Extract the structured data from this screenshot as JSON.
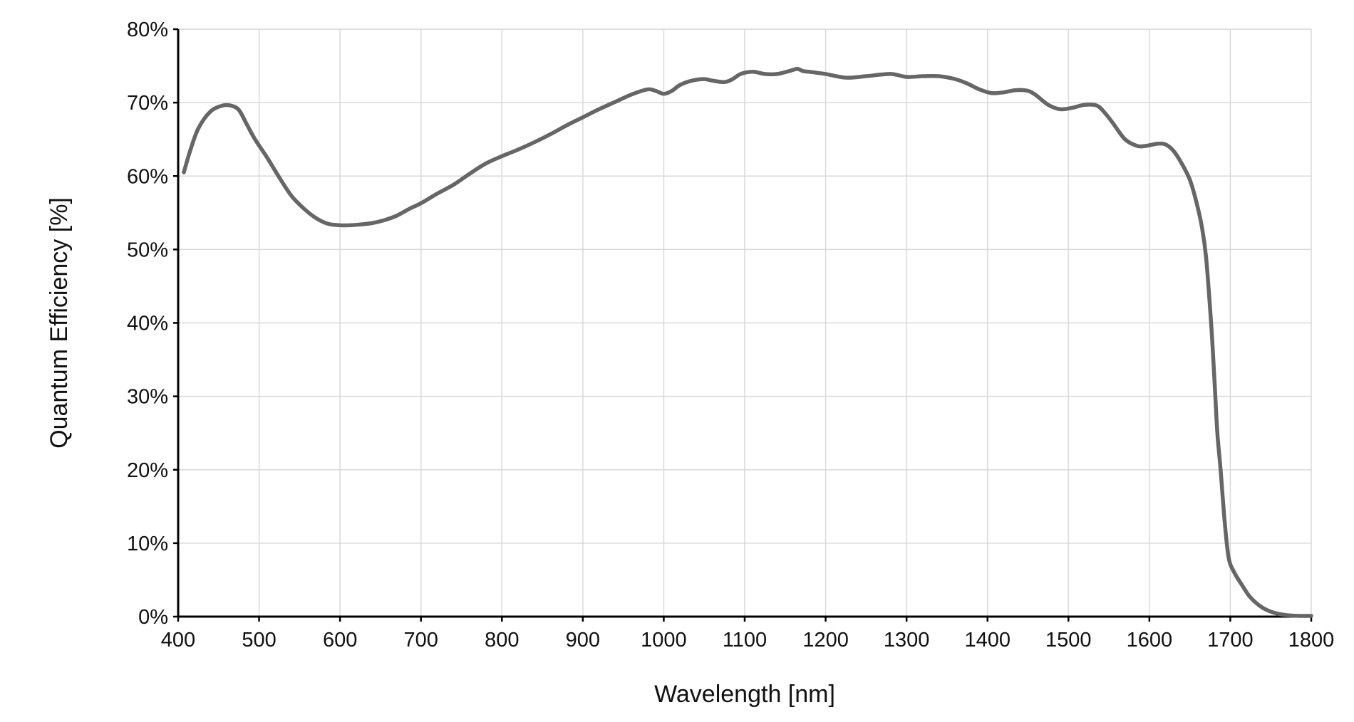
{
  "chart_data": {
    "type": "line",
    "title": "",
    "xlabel": "Wavelength [nm]",
    "ylabel": "Quantum Efficiency [%]",
    "xlim": [
      400,
      1800
    ],
    "ylim": [
      0,
      80
    ],
    "x_ticks": [
      400,
      500,
      600,
      700,
      800,
      900,
      1000,
      1100,
      1200,
      1300,
      1400,
      1500,
      1600,
      1700,
      1800
    ],
    "x_tick_labels": [
      "400",
      "500",
      "600",
      "700",
      "800",
      "900",
      "1000",
      "1100",
      "1200",
      "1300",
      "1400",
      "1500",
      "1600",
      "1700",
      "1800"
    ],
    "y_ticks": [
      0,
      10,
      20,
      30,
      40,
      50,
      60,
      70,
      80
    ],
    "y_tick_labels": [
      "0%",
      "10%",
      "20%",
      "30%",
      "40%",
      "50%",
      "60%",
      "70%",
      "80%"
    ],
    "grid": true,
    "legend": "none",
    "line_color": "#666666",
    "series": [
      {
        "x": [
          407,
          415,
          425,
          440,
          455,
          465,
          475,
          485,
          495,
          510,
          525,
          540,
          555,
          570,
          585,
          600,
          612,
          625,
          640,
          655,
          670,
          685,
          700,
          720,
          740,
          760,
          780,
          800,
          820,
          840,
          860,
          880,
          900,
          920,
          940,
          960,
          980,
          990,
          1000,
          1010,
          1020,
          1035,
          1050,
          1060,
          1075,
          1085,
          1095,
          1110,
          1125,
          1140,
          1155,
          1165,
          1172,
          1180,
          1200,
          1225,
          1250,
          1280,
          1300,
          1320,
          1340,
          1360,
          1375,
          1390,
          1405,
          1420,
          1435,
          1450,
          1460,
          1475,
          1490,
          1505,
          1520,
          1535,
          1545,
          1555,
          1570,
          1585,
          1595,
          1610,
          1620,
          1630,
          1640,
          1650,
          1658,
          1665,
          1670,
          1675,
          1678,
          1681,
          1684,
          1688,
          1693,
          1698,
          1705,
          1715,
          1725,
          1740,
          1755,
          1770,
          1785,
          1795,
          1800
        ],
        "y": [
          60.5,
          63.5,
          66.5,
          68.8,
          69.6,
          69.6,
          69.0,
          67.0,
          65.0,
          62.5,
          59.8,
          57.3,
          55.6,
          54.3,
          53.5,
          53.3,
          53.3,
          53.4,
          53.6,
          54.0,
          54.6,
          55.5,
          56.3,
          57.6,
          58.8,
          60.3,
          61.7,
          62.7,
          63.6,
          64.6,
          65.7,
          66.9,
          68.0,
          69.1,
          70.1,
          71.1,
          71.8,
          71.6,
          71.2,
          71.6,
          72.4,
          73.0,
          73.2,
          73.0,
          72.8,
          73.2,
          73.9,
          74.2,
          73.9,
          73.9,
          74.3,
          74.6,
          74.3,
          74.2,
          73.9,
          73.4,
          73.6,
          73.9,
          73.5,
          73.6,
          73.6,
          73.2,
          72.6,
          71.8,
          71.3,
          71.4,
          71.7,
          71.6,
          71.0,
          69.7,
          69.1,
          69.3,
          69.7,
          69.6,
          68.6,
          67.2,
          65.0,
          64.1,
          64.1,
          64.4,
          64.3,
          63.4,
          61.7,
          59.5,
          56.5,
          53.0,
          49.0,
          42.0,
          37.0,
          31.0,
          25.0,
          20.0,
          13.0,
          8.0,
          6.0,
          4.2,
          2.6,
          1.2,
          0.5,
          0.2,
          0.1,
          0.1,
          0.1
        ]
      }
    ]
  }
}
